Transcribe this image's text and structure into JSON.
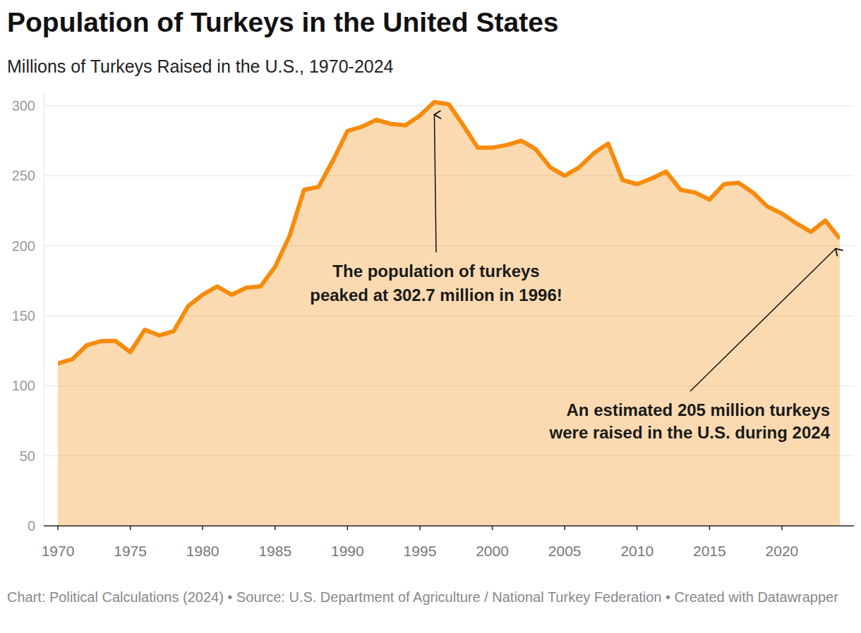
{
  "chart_data": {
    "type": "area",
    "title": "Population of Turkeys in the United States",
    "subtitle": "Millions of Turkeys Raised in the U.S., 1970-2024",
    "source": "Chart: Political Calculations (2024) • Source: U.S. Department of Agriculture / National Turkey Federation • Created with Datawrapper",
    "x": [
      1970,
      1971,
      1972,
      1973,
      1974,
      1975,
      1976,
      1977,
      1978,
      1979,
      1980,
      1981,
      1982,
      1983,
      1984,
      1985,
      1986,
      1987,
      1988,
      1989,
      1990,
      1991,
      1992,
      1993,
      1994,
      1995,
      1996,
      1997,
      1998,
      1999,
      2000,
      2001,
      2002,
      2003,
      2004,
      2005,
      2006,
      2007,
      2008,
      2009,
      2010,
      2011,
      2012,
      2013,
      2014,
      2015,
      2016,
      2017,
      2018,
      2019,
      2020,
      2021,
      2022,
      2023,
      2024
    ],
    "values": [
      116,
      119,
      129,
      132,
      132,
      124,
      140,
      136,
      139,
      157,
      165,
      171,
      165,
      170,
      171,
      185,
      207,
      240,
      242,
      261,
      282,
      285,
      290,
      287,
      286,
      293,
      302.7,
      301,
      286,
      270,
      270,
      272,
      275,
      269,
      256,
      250,
      256,
      266,
      273,
      247,
      244,
      248,
      253,
      240,
      238,
      233,
      244,
      245,
      238,
      228,
      223,
      216,
      210,
      218,
      205
    ],
    "color": "#f78b0b",
    "xlim": [
      1970,
      2024
    ],
    "xticks": [
      1970,
      1975,
      1980,
      1985,
      1990,
      1995,
      2000,
      2005,
      2010,
      2015,
      2020
    ],
    "ylim": [
      0,
      310
    ],
    "yticks": [
      0,
      50,
      100,
      150,
      200,
      250,
      300
    ],
    "grid": true,
    "annotations": [
      {
        "text": [
          "The population of turkeys",
          "peaked at 302.7 million in 1996!"
        ],
        "x": 1996,
        "y": 302.7
      },
      {
        "text": [
          "An estimated 205 million turkeys",
          "were raised in the U.S. during 2024"
        ],
        "x": 2024,
        "y": 205
      }
    ]
  }
}
